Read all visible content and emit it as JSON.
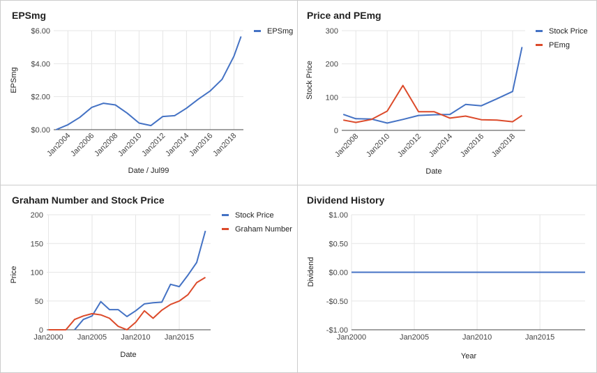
{
  "colors": {
    "blue": "#4472c4",
    "red": "#dc4a2a",
    "grid": "#e6e6e6",
    "axis": "#444444"
  },
  "chart_data": [
    {
      "type": "line",
      "title": "EPSmg",
      "xlabel": "Date / Jul99",
      "ylabel": "EPSmg",
      "xlim": [
        2002.8,
        2018.8
      ],
      "ylim": [
        0,
        6
      ],
      "yticks": [
        0,
        2,
        4,
        6
      ],
      "yticklabels": [
        "$0.00",
        "$2.00",
        "$4.00",
        "$6.00"
      ],
      "xticks": [
        2004,
        2006,
        2008,
        2010,
        2012,
        2014,
        2016,
        2018
      ],
      "xticklabels": [
        "Jan2004",
        "Jan2006",
        "Jan2008",
        "Jan2010",
        "Jan2012",
        "Jan2014",
        "Jan2016",
        "Jan2018"
      ],
      "xtick_rotate": true,
      "legend": "right",
      "series": [
        {
          "name": "EPSmg",
          "color": "#4472c4",
          "x": [
            2003,
            2004,
            2005,
            2006,
            2007,
            2008,
            2009,
            2010,
            2011,
            2012,
            2013,
            2014,
            2015,
            2016,
            2017,
            2018,
            2018.6
          ],
          "y": [
            0,
            0.3,
            0.75,
            1.35,
            1.6,
            1.5,
            1.0,
            0.4,
            0.25,
            0.8,
            0.85,
            1.3,
            1.85,
            2.35,
            3.05,
            4.45,
            5.65
          ]
        }
      ]
    },
    {
      "type": "line",
      "title": "Price and PEmg",
      "xlabel": "Date",
      "ylabel": "Stock Price",
      "xlim": [
        2007.1,
        2018.8
      ],
      "ylim": [
        0,
        300
      ],
      "yticks": [
        0,
        100,
        200,
        300
      ],
      "yticklabels": [
        "0",
        "100",
        "200",
        "300"
      ],
      "xticks": [
        2008,
        2010,
        2012,
        2014,
        2016,
        2018
      ],
      "xticklabels": [
        "Jan2008",
        "Jan2010",
        "Jan2012",
        "Jan2014",
        "Jan2016",
        "Jan2018"
      ],
      "xtick_rotate": true,
      "legend": "right",
      "series": [
        {
          "name": "Stock Price",
          "color": "#4472c4",
          "x": [
            2007.2,
            2008,
            2009,
            2010,
            2011,
            2012,
            2013,
            2014,
            2015,
            2016,
            2017,
            2018,
            2018.6
          ],
          "y": [
            48,
            35,
            34,
            22,
            33,
            45,
            47,
            48,
            78,
            74,
            95,
            117,
            251
          ]
        },
        {
          "name": "PEmg",
          "color": "#dc4a2a",
          "x": [
            2007.2,
            2008,
            2009,
            2010,
            2011,
            2012,
            2013,
            2014,
            2015,
            2016,
            2017,
            2018,
            2018.6
          ],
          "y": [
            31,
            24,
            33,
            58,
            135,
            56,
            56,
            37,
            43,
            32,
            31,
            26,
            45
          ]
        }
      ]
    },
    {
      "type": "line",
      "title": "Graham Number and Stock Price",
      "xlabel": "Date",
      "ylabel": "Price",
      "xlim": [
        1999.8,
        2018.6
      ],
      "ylim": [
        0,
        200
      ],
      "yticks": [
        0,
        50,
        100,
        150,
        200
      ],
      "yticklabels": [
        "0",
        "50",
        "100",
        "150",
        "200"
      ],
      "xticks": [
        2000,
        2005,
        2010,
        2015
      ],
      "xticklabels": [
        "Jan2000",
        "Jan2005",
        "Jan2010",
        "Jan2015"
      ],
      "xtick_rotate": false,
      "legend": "right",
      "series": [
        {
          "name": "Stock Price",
          "color": "#4472c4",
          "x": [
            2003,
            2004,
            2005,
            2006,
            2007,
            2008,
            2009,
            2010,
            2011,
            2012,
            2013,
            2014,
            2015,
            2016,
            2017,
            2018
          ],
          "y": [
            0,
            18,
            24,
            49,
            35,
            35,
            23,
            33,
            45,
            47,
            48,
            79,
            75,
            95,
            117,
            172
          ]
        },
        {
          "name": "Graham Number",
          "color": "#dc4a2a",
          "x": [
            2000,
            2001,
            2002,
            2003,
            2004,
            2005,
            2006,
            2007,
            2008,
            2009,
            2010,
            2011,
            2012,
            2013,
            2014,
            2015,
            2016,
            2017,
            2018
          ],
          "y": [
            0,
            0,
            0,
            18,
            24,
            28,
            26,
            20,
            6,
            0,
            13,
            33,
            20,
            34,
            44,
            50,
            61,
            82,
            91
          ]
        }
      ]
    },
    {
      "type": "line",
      "title": "Dividend History",
      "xlabel": "Year",
      "ylabel": "Dividend",
      "xlim": [
        2000,
        2018.6
      ],
      "ylim": [
        -1,
        1
      ],
      "yticks": [
        -1,
        -0.5,
        0,
        0.5,
        1
      ],
      "yticklabels": [
        "-$1.00",
        "-$0.50",
        "$0.00",
        "$0.50",
        "$1.00"
      ],
      "xticks": [
        2000,
        2005,
        2010,
        2015
      ],
      "xticklabels": [
        "Jan2000",
        "Jan2005",
        "Jan2010",
        "Jan2015"
      ],
      "xtick_rotate": false,
      "legend": "none",
      "series": [
        {
          "color": "#4472c4",
          "x": [
            2000,
            2018.6
          ],
          "y": [
            0,
            0
          ]
        }
      ]
    }
  ]
}
